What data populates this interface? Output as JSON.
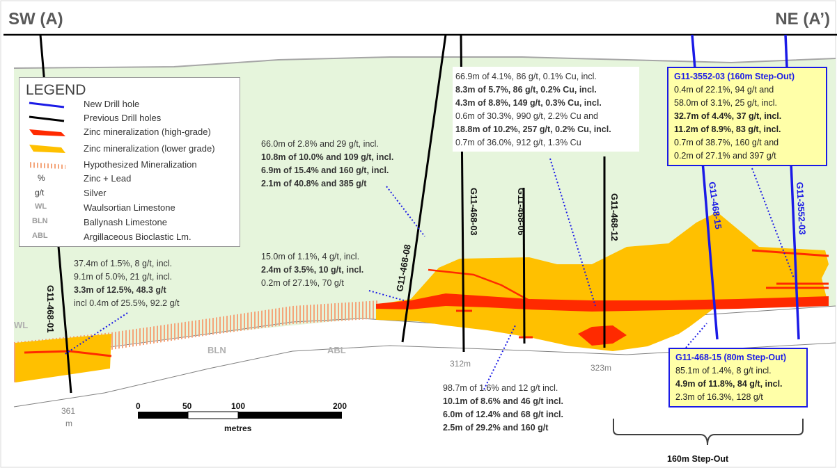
{
  "section": {
    "left_label": "SW (A)",
    "right_label": "NE (A’)"
  },
  "legend": {
    "title": "LEGEND",
    "items": [
      {
        "symbol": "",
        "label": "New Drill hole",
        "color": "#1a1ae6"
      },
      {
        "symbol": "",
        "label": "Previous Drill holes",
        "color": "#000000"
      },
      {
        "symbol": "",
        "label": "Zinc mineralization (high-grade)",
        "color": "#ff2a00"
      },
      {
        "symbol": "",
        "label": "Zinc mineralization  (lower grade)",
        "color": "#ffc000"
      },
      {
        "symbol": "",
        "label": "Hypothesized Mineralization",
        "color": "#f4a57a"
      },
      {
        "symbol": "%",
        "label": "Zinc + Lead"
      },
      {
        "symbol": "g/t",
        "label": "Silver"
      },
      {
        "symbol": "WL",
        "label": "Waulsortian Limestone"
      },
      {
        "symbol": "BLN",
        "label": "Ballynash Limestone"
      },
      {
        "symbol": "ABL",
        "label": "Argillaceous Bioclastic Lm."
      }
    ]
  },
  "units": {
    "wl": "WL",
    "bln": "BLN",
    "abl": "ABL"
  },
  "holes": {
    "h01": "G11-468-01",
    "h08": "G11-468-08",
    "h03": "G11-468-03",
    "h06": "G11-468-06",
    "h12": "G11-468-12",
    "h15": "G11-468-15",
    "h3552": "G11-3552-03"
  },
  "depths": {
    "d361a": "361",
    "d361b": "m",
    "d312": "312m",
    "d323": "323m"
  },
  "scale": {
    "t0": "0",
    "t50": "50",
    "t100": "100",
    "t200": "200",
    "unit": "metres"
  },
  "notes": {
    "n01": [
      {
        "text": "37.4m of 1.5%, 8 g/t, incl.",
        "bold": false
      },
      {
        "text": "9.1m of 5.0%, 21 g/t, incl.",
        "bold": false
      },
      {
        "text": "3.3m of 12.5%, 48.3 g/t",
        "bold": true
      },
      {
        "text": "incl 0.4m of 25.5%, 92.2 g/t",
        "bold": false
      }
    ],
    "n08a": [
      {
        "text": "66.0m of 2.8% and 29 g/t, incl.",
        "bold": false
      },
      {
        "text": "10.8m of 10.0% and 109 g/t, incl.",
        "bold": true
      },
      {
        "text": "6.9m of 15.4% and 160 g/t, incl.",
        "bold": true
      },
      {
        "text": "2.1m of 40.8% and 385 g/t",
        "bold": true
      }
    ],
    "n08b": [
      {
        "text": "15.0m of 1.1%, 4 g/t, incl.",
        "bold": false
      },
      {
        "text": "2.4m of 3.5%, 10 g/t, incl.",
        "bold": true
      },
      {
        "text": "0.2m of 27.1%, 70 g/t",
        "bold": false
      }
    ],
    "n12": [
      {
        "text": "66.9m of 4.1%, 86 g/t, 0.1% Cu, incl.",
        "bold": false
      },
      {
        "text": "8.3m of 5.7%, 86 g/t, 0.2% Cu, incl.",
        "bold": true
      },
      {
        "text": "4.3m of 8.8%, 149 g/t, 0.3% Cu, incl.",
        "bold": true
      },
      {
        "text": "0.6m of 30.3%, 990 g/t, 2.2% Cu and",
        "bold": false
      },
      {
        "text": "18.8m of 10.2%, 257 g/t, 0.2% Cu, incl.",
        "bold": true
      },
      {
        "text": "0.7m of 36.0%, 912 g/t, 1.3% Cu",
        "bold": false
      }
    ],
    "n06": [
      {
        "text": "98.7m of 1.6% and 12 g/t incl.",
        "bold": false
      },
      {
        "text": "10.1m of 8.6% and 46 g/t incl.",
        "bold": true
      },
      {
        "text": "6.0m of 12.4% and 68 g/t incl.",
        "bold": true
      },
      {
        "text": "2.5m of 29.2% and 160 g/t",
        "bold": true
      }
    ]
  },
  "boxes": {
    "b3552": {
      "title": "G11-3552-03 (160m Step-Out)",
      "lines": [
        {
          "text": "0.4m of 22.1%, 94 g/t and",
          "bold": false
        },
        {
          "text": "58.0m of 3.1%, 25 g/t, incl.",
          "bold": false
        },
        {
          "text": "32.7m of 4.4%, 37 g/t, incl.",
          "bold": true
        },
        {
          "text": "11.2m of 8.9%, 83 g/t, incl.",
          "bold": true
        },
        {
          "text": "0.7m of 38.7%, 160 g/t and",
          "bold": false
        },
        {
          "text": "0.2m of 27.1% and 397 g/t",
          "bold": false
        }
      ]
    },
    "b15": {
      "title": "G11-468-15 (80m Step-Out)",
      "lines": [
        {
          "text": "85.1m of 1.4%, 8 g/t incl.",
          "bold": false
        },
        {
          "text": "4.9m of 11.8%, 84 g/t, incl.",
          "bold": true
        },
        {
          "text": "2.3m of 16.3%, 128 g/t",
          "bold": false
        }
      ]
    }
  },
  "stepout": "160m Step-Out",
  "colors": {
    "wl_fill": "#e6f5dc",
    "low_grade": "#ffc000",
    "high_grade": "#ff2a00",
    "hypothesized": "#f4a57a",
    "new_hole": "#1a1ae6",
    "box_fill": "#ffffa8"
  }
}
